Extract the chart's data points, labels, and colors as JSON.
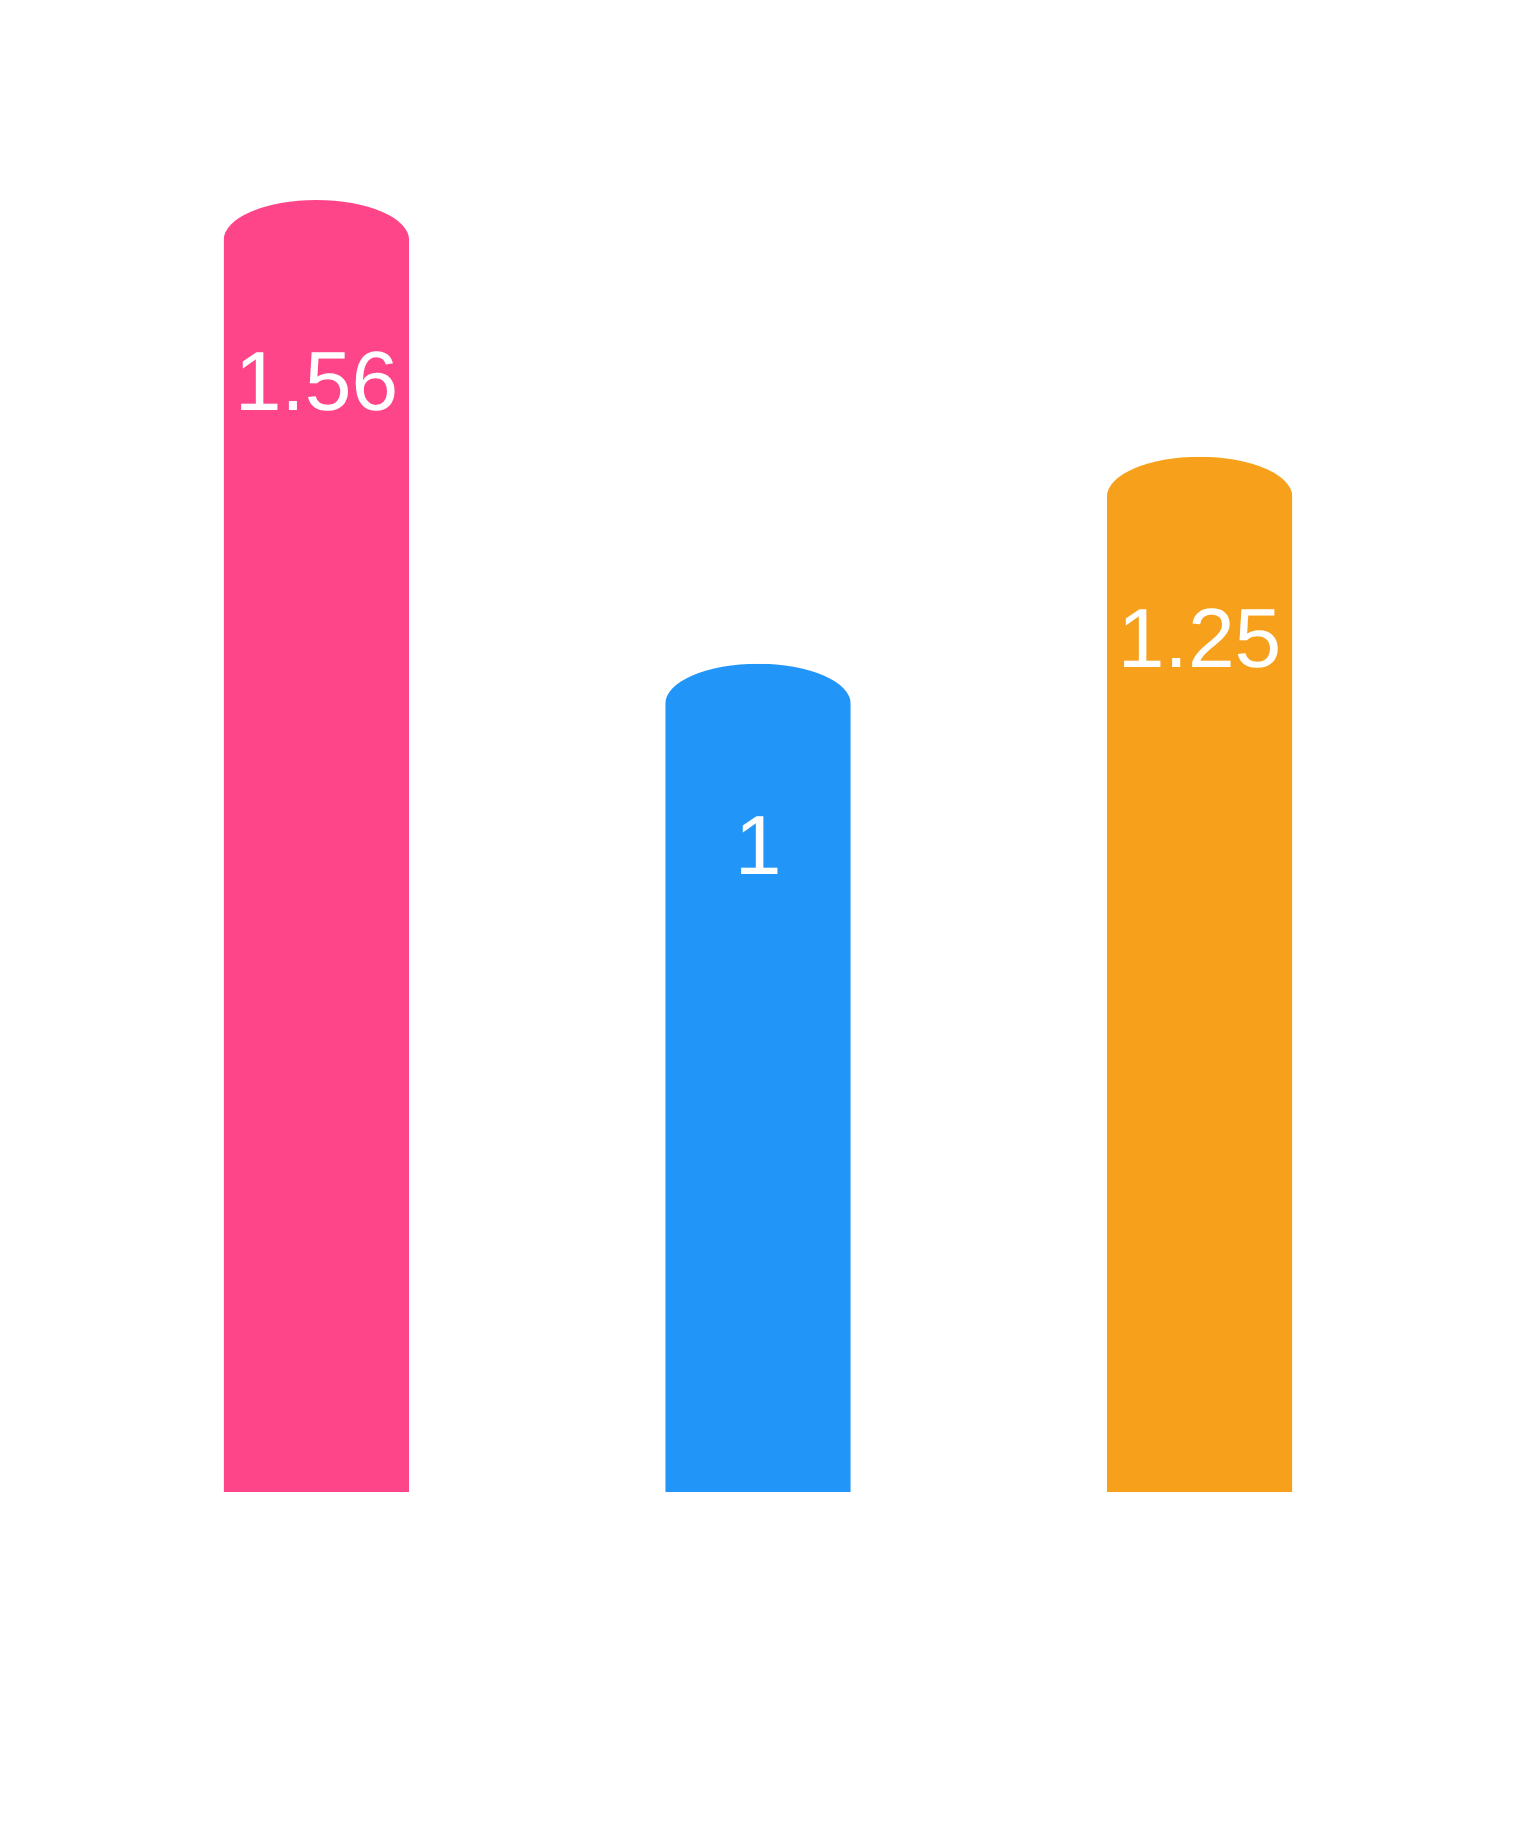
{
  "chart_data": {
    "type": "bar",
    "categories": [
      null,
      null,
      null
    ],
    "values": [
      1.56,
      1,
      1.25
    ],
    "colors": [
      "#ff4589",
      "#2196f8",
      "#f7a01c"
    ],
    "data_labels": true
  }
}
